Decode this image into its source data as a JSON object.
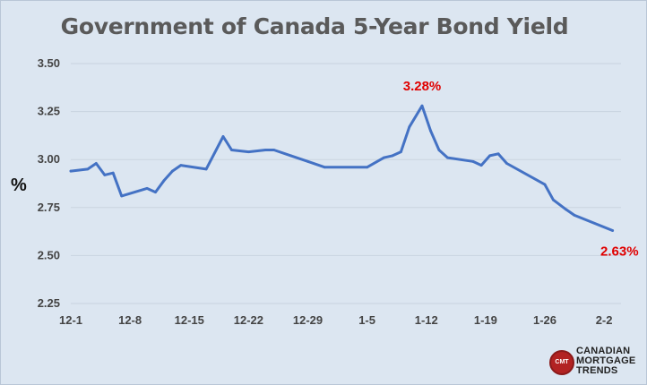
{
  "chart_data": {
    "type": "line",
    "title": "Government of Canada  5-Year Bond Yield",
    "ylabel": "%",
    "xlabel": "",
    "ylim": [
      2.25,
      3.5
    ],
    "yticks": [
      "3.50",
      "3.25",
      "3.00",
      "2.75",
      "2.50",
      "2.25"
    ],
    "xticks": [
      "12-1",
      "12-8",
      "12-15",
      "12-22",
      "12-29",
      "1-5",
      "1-12",
      "1-19",
      "1-26",
      "2-2"
    ],
    "grid": true,
    "line_color": "#4472c4",
    "annotation_color": "#e00000",
    "annotations": [
      {
        "label": "3.28%",
        "x": 41.5,
        "y": 3.28
      },
      {
        "label": "2.63%",
        "x": 64,
        "y": 2.63
      }
    ],
    "x": [
      0,
      2,
      3,
      4,
      5,
      6,
      9,
      10,
      11,
      12,
      13,
      16,
      18,
      19,
      21,
      23,
      24,
      26,
      28,
      30,
      35,
      37,
      38,
      39,
      40,
      41.5,
      42.5,
      43.5,
      44.5,
      47.5,
      48.5,
      49.5,
      50.5,
      51.5,
      56,
      57,
      58.5,
      59.5,
      64
    ],
    "series": [
      {
        "values": [
          2.94,
          2.95,
          2.98,
          2.92,
          2.93,
          2.81,
          2.85,
          2.83,
          2.89,
          2.94,
          2.97,
          2.95,
          3.12,
          3.05,
          3.04,
          3.05,
          3.05,
          3.02,
          2.99,
          2.96,
          2.96,
          3.01,
          3.02,
          3.04,
          3.17,
          3.28,
          3.15,
          3.05,
          3.01,
          2.99,
          2.97,
          3.02,
          3.03,
          2.98,
          2.87,
          2.79,
          2.74,
          2.71,
          2.63
        ]
      }
    ]
  },
  "logo": {
    "badge": "CMT",
    "lines": [
      "CANADIAN",
      "MORTGAGE",
      "TRENDS"
    ]
  }
}
